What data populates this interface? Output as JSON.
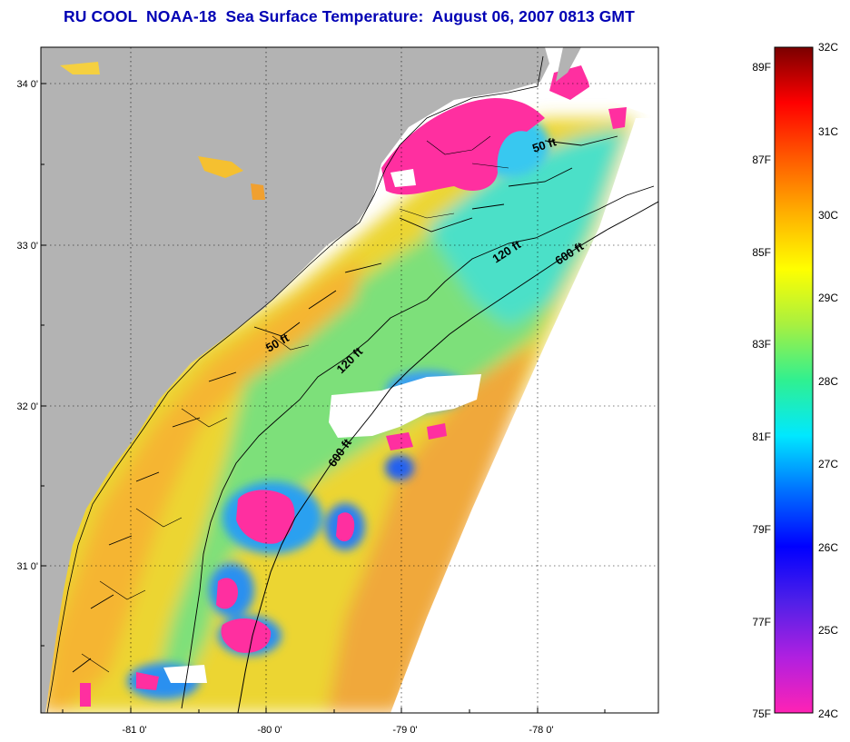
{
  "title": "RU COOL  NOAA-18  Sea Surface Temperature:  August 06, 2007 0813 GMT",
  "map": {
    "lat_ticks": [
      "34 0'",
      "33 0'",
      "32 0'",
      "31 0'"
    ],
    "lon_ticks": [
      "-81 0'",
      "-80 0'",
      "-79 0'",
      "-78 0'"
    ],
    "contour_labels": [
      "50 ft",
      "120 ft",
      "600 ft",
      "50 ft",
      "120 ft",
      "600 ft"
    ]
  },
  "colorbar": {
    "celsius_labels": [
      "32C",
      "31C",
      "30C",
      "29C",
      "28C",
      "27C",
      "26C",
      "25C",
      "24C"
    ],
    "fahrenheit_labels": [
      "89F",
      "87F",
      "85F",
      "83F",
      "81F",
      "79F",
      "77F",
      "75F"
    ],
    "gradient_stops": [
      "#ff22b4",
      "#b020e0",
      "#5020e8",
      "#0000ff",
      "#0070ff",
      "#00e8ff",
      "#30f090",
      "#a8f040",
      "#ffff00",
      "#ffb000",
      "#ff5a00",
      "#ff0000",
      "#7a0000"
    ]
  },
  "colors": {
    "land": "#b3b3b3",
    "no_data": "#ffffff",
    "cloud_mask": "#ff2fa0",
    "title": "#0000b4"
  }
}
